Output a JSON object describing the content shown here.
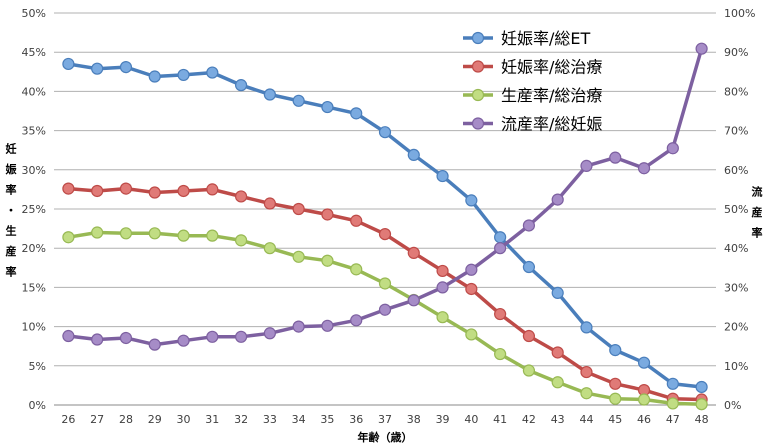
{
  "chart_data": {
    "type": "line",
    "x": [
      26,
      27,
      28,
      29,
      30,
      31,
      32,
      33,
      34,
      35,
      36,
      37,
      38,
      39,
      40,
      41,
      42,
      43,
      44,
      45,
      46,
      47,
      48
    ],
    "xlabel": "年齢（歳）",
    "ylabel_left": "妊娠率・生産率",
    "ylabel_right": "流産率",
    "ylim_left": [
      0,
      50
    ],
    "ylim_right": [
      0,
      100
    ],
    "yticks_left": [
      "0%",
      "5%",
      "10%",
      "15%",
      "20%",
      "25%",
      "30%",
      "35%",
      "40%",
      "45%",
      "50%"
    ],
    "yticks_right": [
      "0%",
      "10%",
      "20%",
      "30%",
      "40%",
      "50%",
      "60%",
      "70%",
      "80%",
      "90%",
      "100%"
    ],
    "grid": true,
    "legend_position": "top-right",
    "series": [
      {
        "name": "妊娠率/総ET",
        "axis": "left",
        "color": "#4a7ebb",
        "marker_fill": "#7aaae0",
        "values": [
          43.5,
          42.9,
          43.1,
          41.9,
          42.1,
          42.4,
          40.8,
          39.6,
          38.8,
          38.0,
          37.2,
          34.8,
          31.9,
          29.2,
          26.1,
          21.4,
          17.6,
          14.3,
          9.9,
          7.0,
          5.4,
          2.7,
          2.3
        ]
      },
      {
        "name": "妊娠率/総治療",
        "axis": "left",
        "color": "#be4b48",
        "marker_fill": "#e07a77",
        "values": [
          27.6,
          27.3,
          27.6,
          27.1,
          27.3,
          27.5,
          26.6,
          25.7,
          25.0,
          24.3,
          23.5,
          21.8,
          19.4,
          17.1,
          14.8,
          11.6,
          8.8,
          6.7,
          4.2,
          2.7,
          1.9,
          0.8,
          0.7
        ]
      },
      {
        "name": "生産率/総治療",
        "axis": "left",
        "color": "#98b954",
        "marker_fill": "#c1dd83",
        "values": [
          21.4,
          22.0,
          21.9,
          21.9,
          21.6,
          21.6,
          21.0,
          20.0,
          18.9,
          18.4,
          17.3,
          15.5,
          13.4,
          11.2,
          9.0,
          6.5,
          4.4,
          2.9,
          1.5,
          0.8,
          0.7,
          0.2,
          0.1
        ]
      },
      {
        "name": "流産率/総妊娠",
        "axis": "right",
        "color": "#7d60a0",
        "marker_fill": "#a68cc7",
        "values": [
          17.6,
          16.7,
          17.1,
          15.4,
          16.4,
          17.4,
          17.4,
          18.3,
          20.0,
          20.2,
          21.6,
          24.3,
          26.7,
          30.0,
          34.5,
          40.0,
          45.8,
          52.4,
          61.0,
          63.1,
          60.4,
          65.5,
          90.9
        ]
      }
    ]
  }
}
